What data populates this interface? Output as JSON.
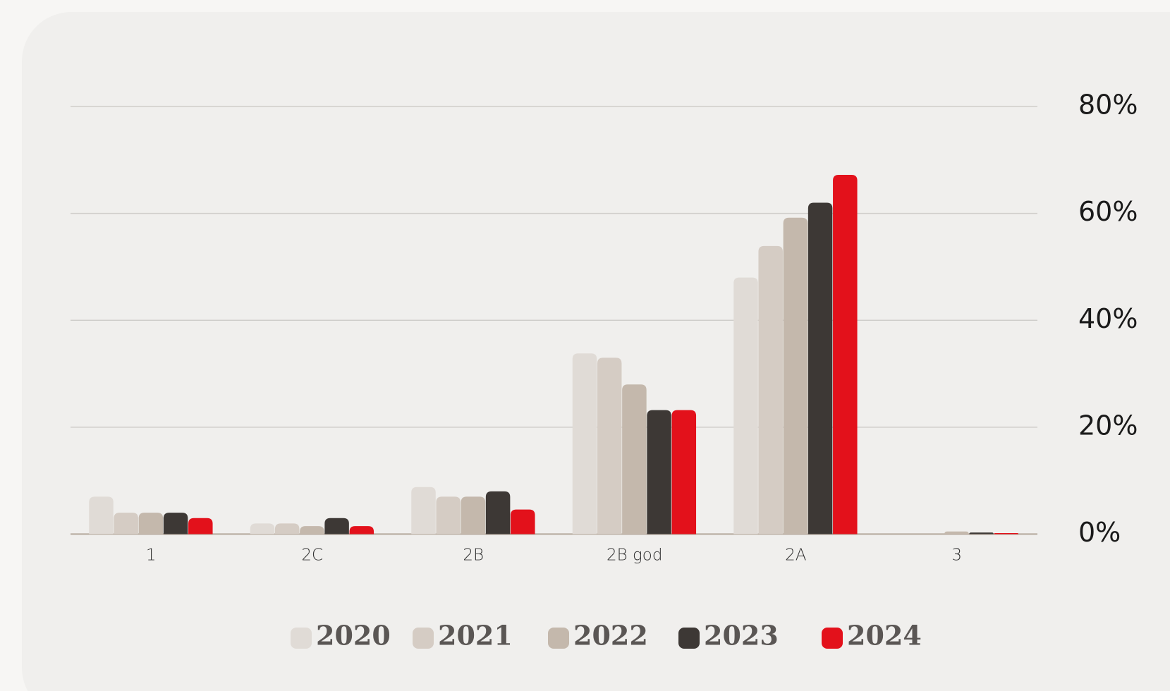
{
  "chart_data": {
    "type": "bar",
    "categories": [
      "1",
      "2C",
      "2B",
      "2B god",
      "2A",
      "3"
    ],
    "series": [
      {
        "name": "2020",
        "color": "#e0dbd6",
        "values": [
          7,
          2,
          8.8,
          33.8,
          48,
          0
        ]
      },
      {
        "name": "2021",
        "color": "#d5ccc4",
        "values": [
          4,
          2,
          7,
          33,
          53.9,
          0
        ]
      },
      {
        "name": "2022",
        "color": "#c4b8ac",
        "values": [
          4,
          1.5,
          7,
          28,
          59.2,
          0.5
        ]
      },
      {
        "name": "2023",
        "color": "#3d3835",
        "values": [
          4,
          3,
          8,
          23.2,
          62,
          0.3
        ]
      },
      {
        "name": "2024",
        "color": "#e3111b",
        "values": [
          3,
          1.5,
          4.6,
          23.2,
          67.2,
          0.2
        ]
      }
    ],
    "ylim": [
      0,
      80
    ],
    "yticks": [
      {
        "value": 0,
        "label": "0%"
      },
      {
        "value": 20,
        "label": "20%"
      },
      {
        "value": 40,
        "label": "40%"
      },
      {
        "value": 60,
        "label": "60%"
      },
      {
        "value": 80,
        "label": "80%"
      }
    ],
    "grid": true
  }
}
